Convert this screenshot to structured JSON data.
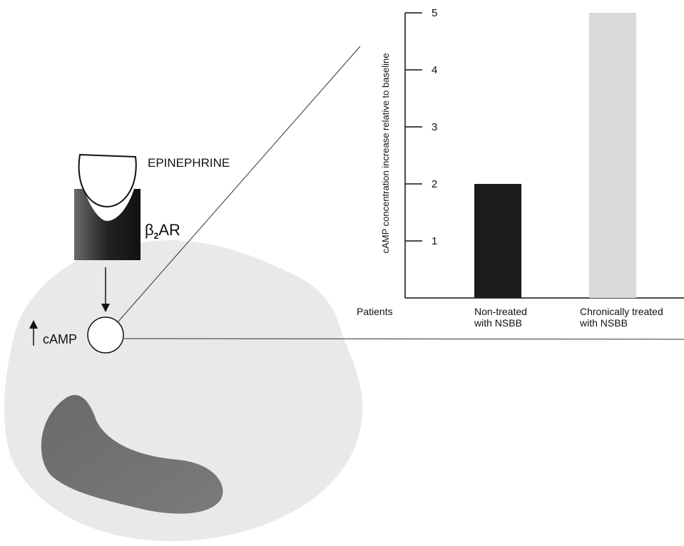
{
  "diagram": {
    "ligand_label": "EPINEPHRINE",
    "receptor_symbol": "β",
    "receptor_subscript": "2",
    "receptor_name": "AR",
    "messenger_label": "cAMP"
  },
  "chart_data": {
    "type": "bar",
    "y_label": "cAMP concentration increase relative to baseline",
    "x_label": "Patients",
    "categories": [
      "Non-treated\nwith NSBB",
      "Chronically treated\nwith NSBB"
    ],
    "values": [
      2,
      5
    ],
    "colors": [
      "#1c1c1c",
      "#d9d9d9"
    ],
    "ylim": [
      0,
      5
    ],
    "yticks": [
      1,
      2,
      3,
      4,
      5
    ]
  }
}
